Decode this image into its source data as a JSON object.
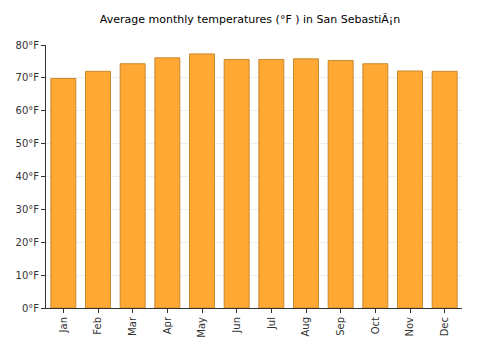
{
  "chart_data": {
    "type": "bar",
    "title": "Average monthly temperatures (°F ) in San SebastiÃ¡n",
    "categories": [
      "Jan",
      "Feb",
      "Mar",
      "Apr",
      "May",
      "Jun",
      "Jul",
      "Aug",
      "Sep",
      "Oct",
      "Nov",
      "Dec"
    ],
    "values": [
      69.8,
      72,
      74.3,
      76.1,
      77.3,
      75.6,
      75.6,
      75.8,
      75.3,
      74.3,
      72.1,
      72
    ],
    "color": "#ffa833",
    "ylim": [
      0,
      80
    ],
    "yticks": [
      {
        "value": 0,
        "label": "0°F"
      },
      {
        "value": 10,
        "label": "10°F"
      },
      {
        "value": 20,
        "label": "20°F"
      },
      {
        "value": 30,
        "label": "30°F"
      },
      {
        "value": 40,
        "label": "40°F"
      },
      {
        "value": 50,
        "label": "50°F"
      },
      {
        "value": 60,
        "label": "60°F"
      },
      {
        "value": 70,
        "label": "70°F"
      },
      {
        "value": 80,
        "label": "80°F"
      }
    ],
    "grid": true
  }
}
